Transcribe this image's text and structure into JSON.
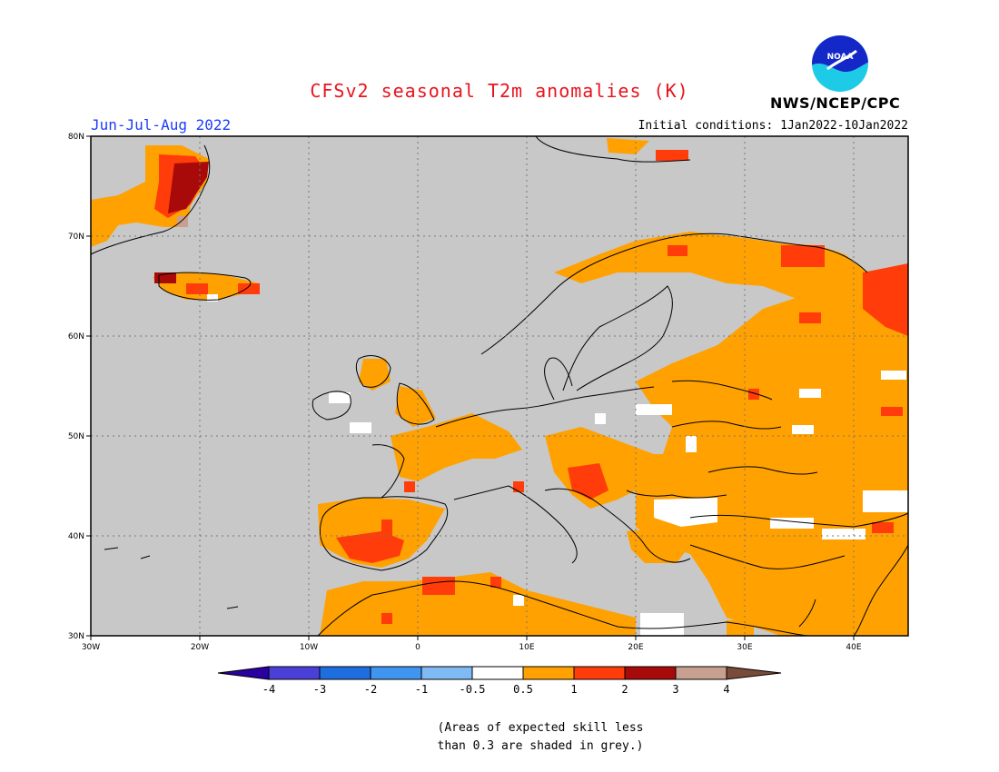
{
  "header": {
    "title": "CFSv2 seasonal T2m anomalies (K)",
    "season": "Jun-Jul-Aug 2022",
    "initial_conditions": "Initial conditions: 1Jan2022-10Jan2022",
    "agency": "NWS/NCEP/CPC",
    "logo_text": "NOAA"
  },
  "map": {
    "lon_range": [
      -30,
      45
    ],
    "lat_range": [
      30,
      80
    ],
    "x_ticks": [
      "30W",
      "20W",
      "10W",
      "0",
      "10E",
      "20E",
      "30E",
      "40E"
    ],
    "y_ticks": [
      "80N",
      "70N",
      "60N",
      "50N",
      "40N",
      "30N"
    ],
    "background_color": "#c8c8c8",
    "gridlines": true
  },
  "colorbar": {
    "labels": [
      "-4",
      "-3",
      "-2",
      "-1",
      "-0.5",
      "0.5",
      "1",
      "2",
      "3",
      "4"
    ],
    "colors": [
      "#2a00a0",
      "#4a40d8",
      "#1f6ee0",
      "#3f95f0",
      "#7fbaf5",
      "#ffffff",
      "#ffa100",
      "#ff3c0a",
      "#a80a0a",
      "#c8a090",
      "#7a4a3a"
    ]
  },
  "note": [
    "(Areas of expected skill less",
    "than 0.3 are shaded in grey.)"
  ]
}
